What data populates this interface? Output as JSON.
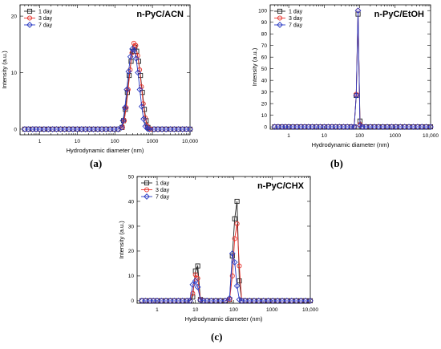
{
  "figure": {
    "panel_labels": [
      "(a)",
      "(b)",
      "(c)"
    ]
  },
  "chart_data": [
    {
      "type": "line",
      "title": "n-PyC/ACN",
      "xlabel": "Hydrodynamic diameter (nm)",
      "ylabel": "Intensity (a.u.)",
      "x_scale": "log",
      "xlim": [
        0.3,
        10000
      ],
      "ylim": [
        -1,
        22
      ],
      "x_ticks": [
        1,
        10,
        100,
        1000,
        10000
      ],
      "x_tick_labels": [
        "1",
        "10",
        "100",
        "1000",
        "10,000"
      ],
      "y_ticks": [
        0,
        10,
        20
      ],
      "y_tick_labels": [
        "0",
        "10",
        "20"
      ],
      "legend_position": "top-left",
      "series": [
        {
          "name": "1 day",
          "color": "#222222",
          "marker": "square",
          "x": [
            0.4,
            0.5,
            0.65,
            0.8,
            1,
            1.3,
            1.7,
            2.2,
            2.8,
            3.6,
            4.6,
            6,
            7.7,
            10,
            13,
            16.5,
            21,
            27,
            35,
            45,
            58,
            75,
            96,
            122,
            155,
            170,
            190,
            215,
            240,
            270,
            300,
            340,
            380,
            430,
            480,
            540,
            610,
            680,
            760,
            850,
            1100,
            1400,
            1800,
            2300,
            3000,
            3800,
            4900,
            6300,
            8000,
            10000
          ],
          "y": [
            0,
            0,
            0,
            0,
            0,
            0,
            0,
            0,
            0,
            0,
            0,
            0,
            0,
            0,
            0,
            0,
            0,
            0,
            0,
            0,
            0,
            0,
            0,
            0,
            0.3,
            1.5,
            3.5,
            6.5,
            9.5,
            12,
            13.8,
            14.5,
            13.8,
            12,
            9.5,
            6.5,
            3.5,
            1.5,
            0.3,
            0,
            0,
            0,
            0,
            0,
            0,
            0,
            0,
            0,
            0,
            0
          ]
        },
        {
          "name": "3 day",
          "color": "#e8302a",
          "marker": "circle",
          "x": [
            0.4,
            0.5,
            0.65,
            0.8,
            1,
            1.3,
            1.7,
            2.2,
            2.8,
            3.6,
            4.6,
            6,
            7.7,
            10,
            13,
            16.5,
            21,
            27,
            35,
            45,
            58,
            75,
            96,
            122,
            160,
            178,
            200,
            225,
            255,
            285,
            320,
            360,
            405,
            455,
            510,
            570,
            640,
            720,
            800,
            900,
            1100,
            1400,
            1800,
            2300,
            3000,
            3800,
            4900,
            6300,
            8000,
            10000
          ],
          "y": [
            0,
            0,
            0,
            0,
            0,
            0,
            0,
            0,
            0,
            0,
            0,
            0,
            0,
            0,
            0,
            0,
            0,
            0,
            0,
            0,
            0,
            0,
            0,
            0,
            0.3,
            1.5,
            3.8,
            7,
            10.5,
            13.5,
            15.2,
            14.8,
            13,
            10.5,
            7.5,
            4.5,
            2,
            0.6,
            0.1,
            0,
            0,
            0,
            0,
            0,
            0,
            0,
            0,
            0,
            0,
            0
          ]
        },
        {
          "name": "7 day",
          "color": "#2b3cc4",
          "marker": "diamond",
          "x": [
            0.4,
            0.5,
            0.65,
            0.8,
            1,
            1.3,
            1.7,
            2.2,
            2.8,
            3.6,
            4.6,
            6,
            7.7,
            10,
            13,
            16.5,
            21,
            27,
            35,
            45,
            58,
            75,
            96,
            122,
            150,
            165,
            185,
            208,
            232,
            260,
            292,
            328,
            368,
            412,
            462,
            518,
            580,
            650,
            730,
            820,
            1100,
            1400,
            1800,
            2300,
            3000,
            3800,
            4900,
            6300,
            8000,
            10000
          ],
          "y": [
            0,
            0,
            0,
            0,
            0,
            0,
            0,
            0,
            0,
            0,
            0,
            0,
            0,
            0,
            0,
            0,
            0,
            0,
            0,
            0,
            0,
            0,
            0,
            0,
            0.3,
            1.5,
            3.8,
            7,
            10.2,
            12.8,
            14.2,
            14,
            12.5,
            10,
            7,
            4,
            1.8,
            0.5,
            0.1,
            0,
            0,
            0,
            0,
            0,
            0,
            0,
            0,
            0,
            0,
            0
          ]
        }
      ]
    },
    {
      "type": "line",
      "title": "n-PyC/EtOH",
      "xlabel": "Hydrodynamic diameter (nm)",
      "ylabel": "Intensity (a.u.)",
      "x_scale": "log",
      "xlim": [
        0.3,
        10000
      ],
      "ylim": [
        -2,
        105
      ],
      "x_ticks": [
        1,
        10,
        100,
        1000,
        10000
      ],
      "x_tick_labels": [
        "1",
        "10",
        "100",
        "1000",
        "10,000"
      ],
      "y_ticks": [
        0,
        10,
        20,
        30,
        40,
        50,
        60,
        70,
        80,
        90,
        100
      ],
      "y_tick_labels": [
        "0",
        "10",
        "20",
        "30",
        "40",
        "50",
        "60",
        "70",
        "80",
        "90",
        "100"
      ],
      "legend_position": "top-left",
      "series": [
        {
          "name": "1 day",
          "color": "#222222",
          "marker": "square",
          "x": [
            0.4,
            0.5,
            0.65,
            0.8,
            1,
            1.3,
            1.7,
            2.2,
            2.8,
            3.6,
            4.6,
            6,
            7.7,
            10,
            13,
            16.5,
            21,
            27,
            35,
            45,
            58,
            70,
            80,
            90,
            102,
            120,
            150,
            200,
            260,
            340,
            450,
            600,
            800,
            1050,
            1400,
            1850,
            2450,
            3250,
            4300,
            5700,
            7500,
            10000
          ],
          "y": [
            0,
            0,
            0,
            0,
            0,
            0,
            0,
            0,
            0,
            0,
            0,
            0,
            0,
            0,
            0,
            0,
            0,
            0,
            0,
            0,
            0,
            0,
            27,
            97,
            5,
            0,
            0,
            0,
            0,
            0,
            0,
            0,
            0,
            0,
            0,
            0,
            0,
            0,
            0,
            0,
            0,
            0
          ]
        },
        {
          "name": "3 day",
          "color": "#e8302a",
          "marker": "circle",
          "x": [
            0.4,
            0.5,
            0.65,
            0.8,
            1,
            1.3,
            1.7,
            2.2,
            2.8,
            3.6,
            4.6,
            6,
            7.7,
            10,
            13,
            16.5,
            21,
            27,
            35,
            45,
            58,
            70,
            80,
            90,
            102,
            120,
            150,
            200,
            260,
            340,
            450,
            600,
            800,
            1050,
            1400,
            1850,
            2450,
            3250,
            4300,
            5700,
            7500,
            10000
          ],
          "y": [
            0,
            0,
            0,
            0,
            0,
            0,
            0,
            0,
            0,
            0,
            0,
            0,
            0,
            0,
            0,
            0,
            0,
            0,
            0,
            0,
            0,
            0,
            28,
            100,
            2,
            0,
            0,
            0,
            0,
            0,
            0,
            0,
            0,
            0,
            0,
            0,
            0,
            0,
            0,
            0,
            0,
            0
          ]
        },
        {
          "name": "7 day",
          "color": "#2b3cc4",
          "marker": "diamond",
          "x": [
            0.4,
            0.5,
            0.65,
            0.8,
            1,
            1.3,
            1.7,
            2.2,
            2.8,
            3.6,
            4.6,
            6,
            7.7,
            10,
            13,
            16.5,
            21,
            27,
            35,
            45,
            58,
            70,
            80,
            90,
            102,
            120,
            150,
            200,
            260,
            340,
            450,
            600,
            800,
            1050,
            1400,
            1850,
            2450,
            3250,
            4300,
            5700,
            7500,
            10000
          ],
          "y": [
            0,
            0,
            0,
            0,
            0,
            0,
            0,
            0,
            0,
            0,
            0,
            0,
            0,
            0,
            0,
            0,
            0,
            0,
            0,
            0,
            0,
            0,
            27,
            100,
            1,
            0,
            0,
            0,
            0,
            0,
            0,
            0,
            0,
            0,
            0,
            0,
            0,
            0,
            0,
            0,
            0,
            0
          ]
        }
      ]
    },
    {
      "type": "line",
      "title": "n-PyC/CHX",
      "xlabel": "Hydrodynamic diameter (nm)",
      "ylabel": "Intensity (a.u.)",
      "x_scale": "log",
      "xlim": [
        0.3,
        10000
      ],
      "ylim": [
        -1,
        50
      ],
      "x_ticks": [
        1,
        10,
        100,
        1000,
        10000
      ],
      "x_tick_labels": [
        "1",
        "10",
        "100",
        "1000",
        "10,000"
      ],
      "y_ticks": [
        0,
        10,
        20,
        30,
        40,
        50
      ],
      "y_tick_labels": [
        "0",
        "10",
        "20",
        "30",
        "40",
        "50"
      ],
      "legend_position": "top-left",
      "series": [
        {
          "name": "1 day",
          "color": "#222222",
          "marker": "square",
          "x": [
            0.4,
            0.5,
            0.65,
            0.8,
            1,
            1.3,
            1.7,
            2.2,
            2.8,
            3.6,
            4.6,
            6,
            7.2,
            8.5,
            10,
            11.5,
            13.5,
            16,
            20,
            26,
            34,
            45,
            60,
            78,
            92,
            106,
            122,
            140,
            162,
            200,
            260,
            340,
            450,
            600,
            800,
            1050,
            1400,
            1850,
            2450,
            3250,
            4300,
            5700,
            7500,
            10000
          ],
          "y": [
            0,
            0,
            0,
            0,
            0,
            0,
            0,
            0,
            0,
            0,
            0,
            0,
            0,
            1.5,
            12,
            14,
            0.5,
            0,
            0,
            0,
            0,
            0,
            0,
            0.5,
            18,
            33,
            40,
            8,
            0,
            0,
            0,
            0,
            0,
            0,
            0,
            0,
            0,
            0,
            0,
            0,
            0,
            0,
            0,
            0
          ]
        },
        {
          "name": "3 day",
          "color": "#e8302a",
          "marker": "circle",
          "x": [
            0.4,
            0.5,
            0.65,
            0.8,
            1,
            1.3,
            1.7,
            2.2,
            2.8,
            3.6,
            4.6,
            6,
            7.2,
            8.5,
            10,
            11.5,
            13.5,
            16,
            20,
            26,
            34,
            45,
            60,
            78,
            92,
            106,
            122,
            140,
            162,
            200,
            260,
            340,
            450,
            600,
            800,
            1050,
            1400,
            1850,
            2450,
            3250,
            4300,
            5700,
            7500,
            10000
          ],
          "y": [
            0,
            0,
            0,
            0,
            0,
            0,
            0,
            0,
            0,
            0,
            0,
            0,
            0,
            3,
            10.5,
            9,
            0.5,
            0,
            0,
            0,
            0,
            0,
            0,
            0.5,
            10,
            25,
            31,
            14,
            0,
            0,
            0,
            0,
            0,
            0,
            0,
            0,
            0,
            0,
            0,
            0,
            0,
            0,
            0,
            0
          ]
        },
        {
          "name": "7 day",
          "color": "#2b3cc4",
          "marker": "diamond",
          "x": [
            0.4,
            0.5,
            0.65,
            0.8,
            1,
            1.3,
            1.7,
            2.2,
            2.8,
            3.6,
            4.6,
            6,
            7.2,
            8.5,
            10,
            11.5,
            13.5,
            16,
            20,
            26,
            34,
            45,
            60,
            78,
            92,
            106,
            122,
            140,
            162,
            200,
            260,
            340,
            450,
            600,
            800,
            1050,
            1400,
            1850,
            2450,
            3250,
            4300,
            5700,
            7500,
            10000
          ],
          "y": [
            0,
            0,
            0,
            0,
            0,
            0,
            0,
            0,
            0,
            0,
            0,
            0,
            0,
            6.5,
            8,
            5.5,
            0.3,
            0,
            0,
            0,
            0,
            0,
            0,
            1,
            19,
            15.5,
            6,
            0.5,
            0,
            0,
            0,
            0,
            0,
            0,
            0,
            0,
            0,
            0,
            0,
            0,
            0,
            0,
            0,
            0
          ]
        }
      ]
    }
  ]
}
